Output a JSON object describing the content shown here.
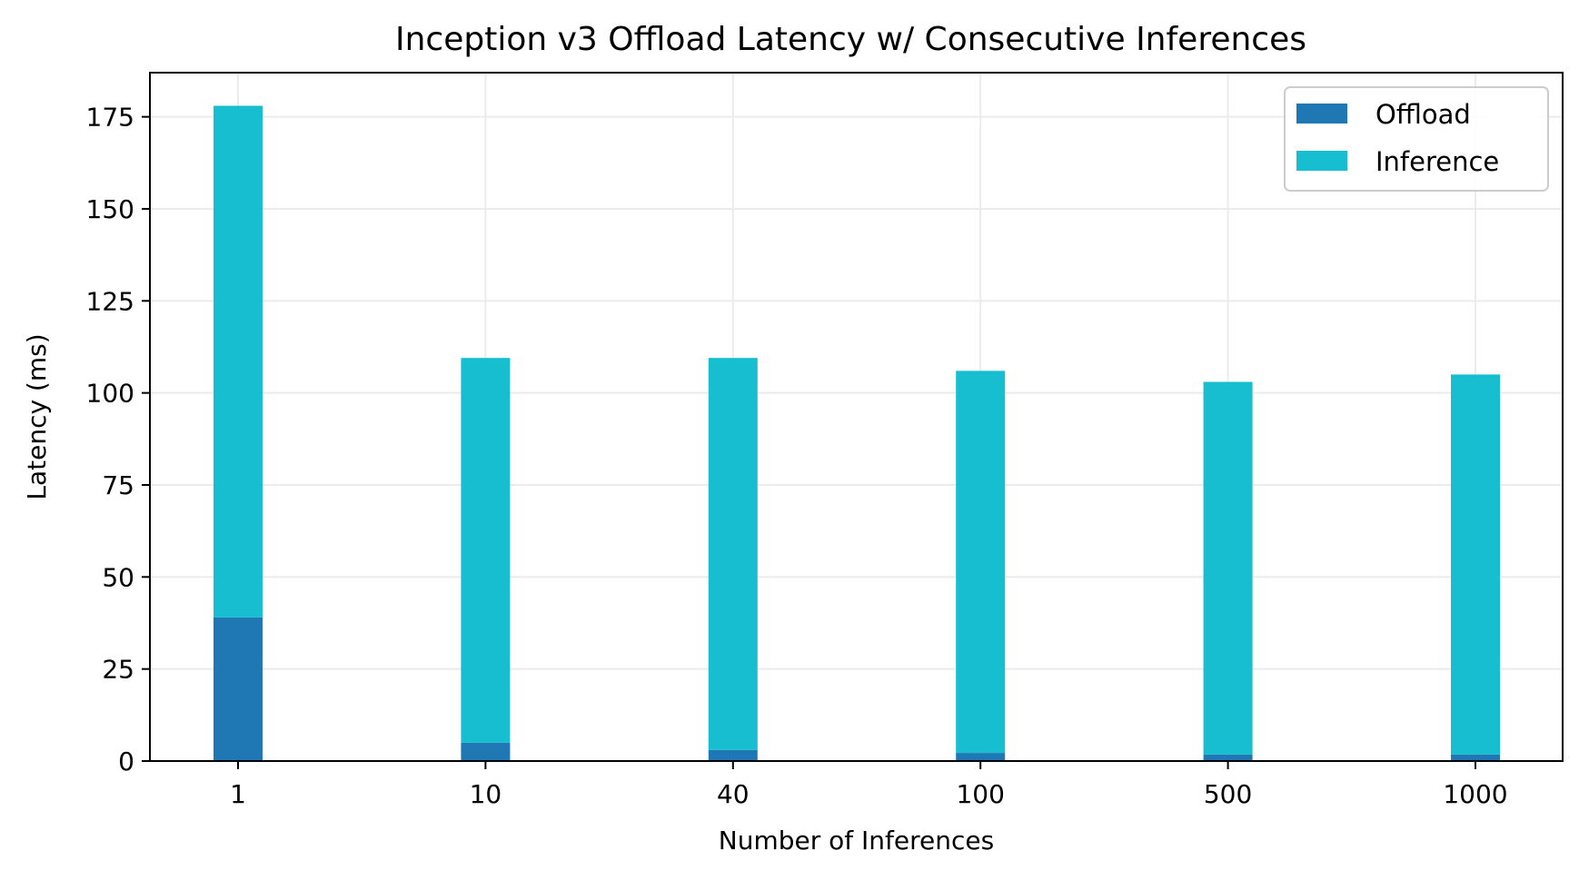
{
  "chart_data": {
    "type": "bar",
    "stacked": true,
    "title": "Inception v3 Offload Latency w/ Consecutive Inferences",
    "xlabel": "Number of Inferences",
    "ylabel": "Latency (ms)",
    "categories": [
      "1",
      "10",
      "40",
      "100",
      "500",
      "1000"
    ],
    "series": [
      {
        "name": "Offload",
        "color": "#1f77b4",
        "values": [
          39,
          5,
          3,
          2.2,
          1.8,
          1.8
        ]
      },
      {
        "name": "Inference",
        "color": "#17becf",
        "values": [
          139,
          104.5,
          106.5,
          103.8,
          101.2,
          103.2
        ]
      }
    ],
    "ylim": [
      0,
      187
    ],
    "yticks": [
      0,
      25,
      50,
      75,
      100,
      125,
      150,
      175
    ],
    "grid": true,
    "legend_position": "top-right"
  }
}
